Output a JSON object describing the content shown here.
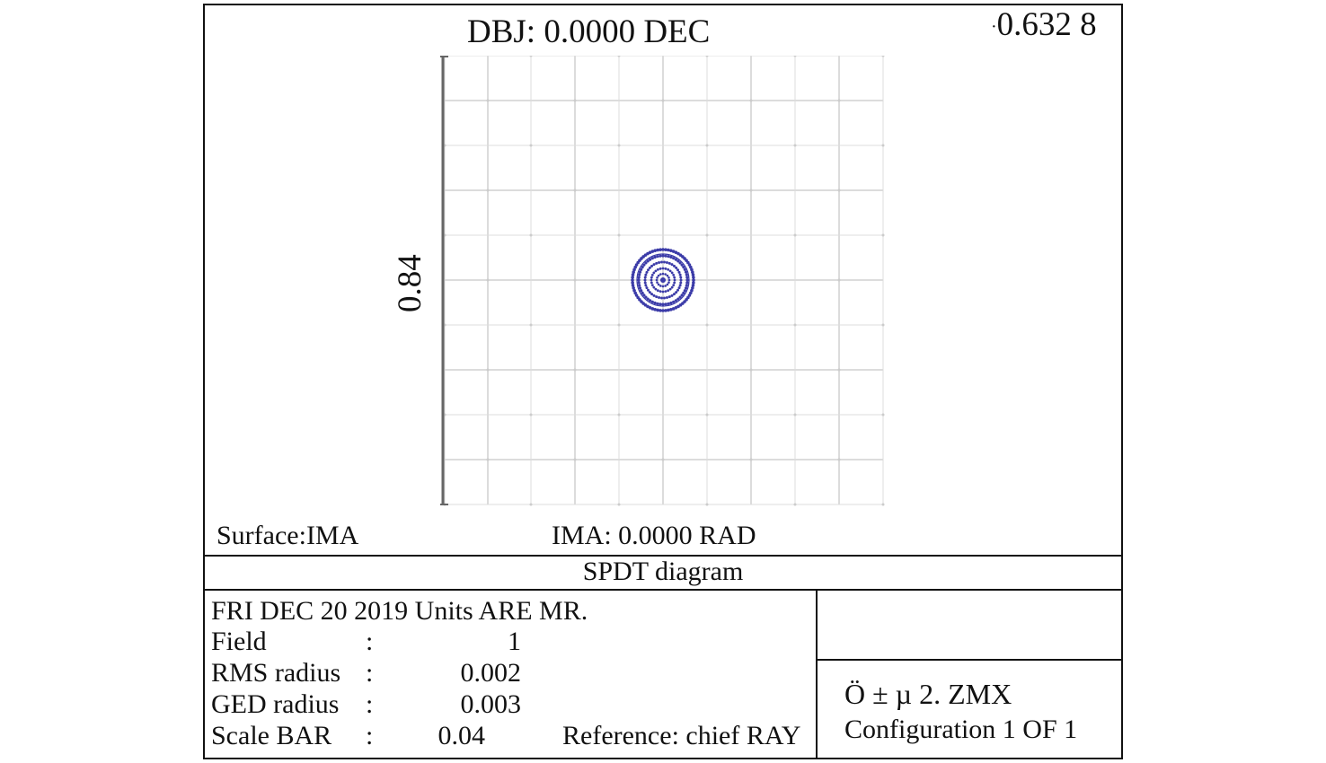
{
  "header": {
    "title": "DBJ: 0.0000 DEC",
    "wavelength_dot": "·",
    "wavelength": "0.632 8"
  },
  "plot": {
    "scale_label": "0.84"
  },
  "footer_labels": {
    "surface": "Surface:IMA",
    "ima": "IMA: 0.0000 RAD"
  },
  "caption": "SPDT diagram",
  "info": {
    "date_units": "FRI DEC 20 2019 Units ARE MR.",
    "rows": [
      {
        "key": "Field",
        "colon": ":",
        "value": "1"
      },
      {
        "key": "RMS radius",
        "colon": ":",
        "value": "0.002"
      },
      {
        "key": "GED radius",
        "colon": ":",
        "value": "0.003"
      },
      {
        "key": "Scale BAR",
        "colon": ":",
        "value": "0.04"
      }
    ],
    "reference": "Reference: chief RAY"
  },
  "file_box": {
    "file": "Ö ± µ 2. ZMX",
    "configuration": "Configuration 1 OF 1"
  },
  "colors": {
    "spot": "#3b3ba8",
    "grid": "#dcdcdc",
    "frame": "#111111"
  }
}
